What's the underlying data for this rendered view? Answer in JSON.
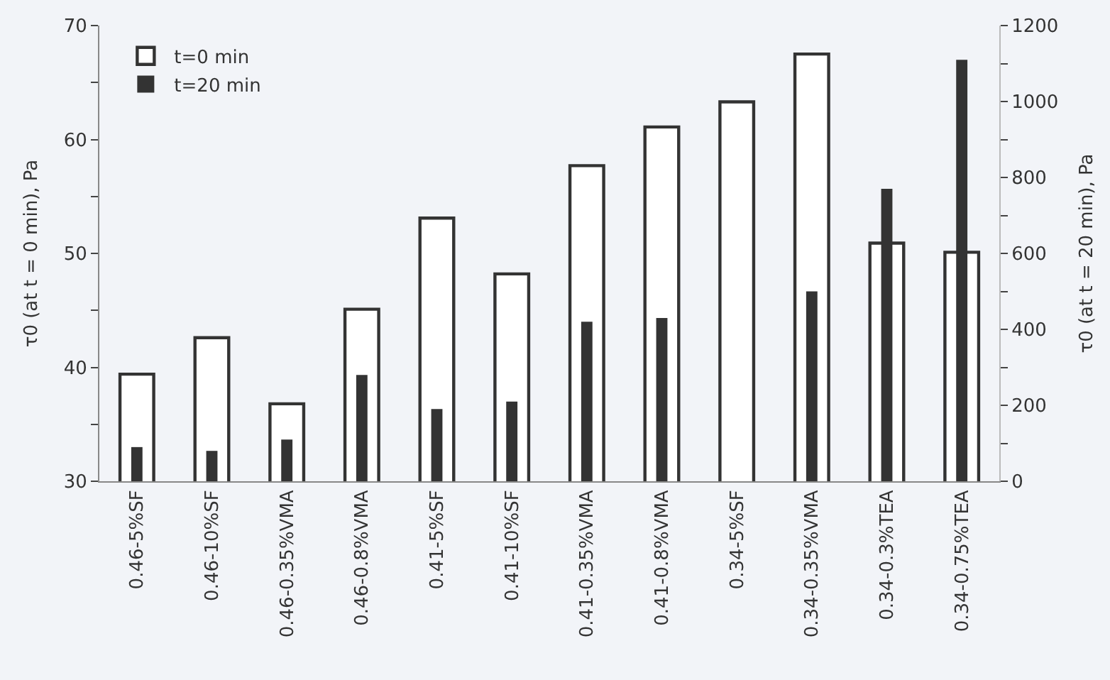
{
  "chart_data": {
    "type": "bar",
    "ylabel": "τ0 (at t = 0 min), Pa",
    "y2label": "τ0 (at t = 20 min), Pa",
    "categories": [
      "0.46-5%SF",
      "0.46-10%SF",
      "0.46-0.35%VMA",
      "0.46-0.8%VMA",
      "0.41-5%SF",
      "0.41-10%SF",
      "0.41-0.35%VMA",
      "0.41-0.8%VMA",
      "0.34-5%SF",
      "0.34-0.35%VMA",
      "0.34-0.3%TEA",
      "0.34-0.75%TEA"
    ],
    "series": [
      {
        "name": "t=0 min",
        "color": "#ffffff",
        "values": [
          39.4,
          42.6,
          36.8,
          45.1,
          53.1,
          48.2,
          57.7,
          61.1,
          63.3,
          67.5,
          50.9,
          50.1
        ]
      },
      {
        "name": "t=20 min",
        "color": "#333333",
        "axis": "y2",
        "values": [
          90,
          80,
          110,
          280,
          190,
          210,
          420,
          430,
          null,
          500,
          770,
          1110
        ]
      }
    ],
    "ylim": [
      30,
      70
    ],
    "yticks": [
      30,
      {
        "value": 35,
        "label": null
      },
      40,
      {
        "value": 45,
        "label": null
      },
      50,
      {
        "value": 55,
        "label": null
      },
      60,
      {
        "value": 65,
        "label": null
      },
      70
    ],
    "y2lim": [
      0,
      1200
    ],
    "y2ticks": [
      0,
      {
        "value": 100,
        "label": null
      },
      200,
      {
        "value": 300,
        "label": null
      },
      400,
      {
        "value": 500,
        "label": null
      },
      600,
      {
        "value": 700,
        "label": null
      },
      800,
      {
        "value": 900,
        "label": null
      },
      1000,
      {
        "value": 1100,
        "label": null
      },
      1200
    ],
    "grid": false,
    "legend": "top left"
  }
}
